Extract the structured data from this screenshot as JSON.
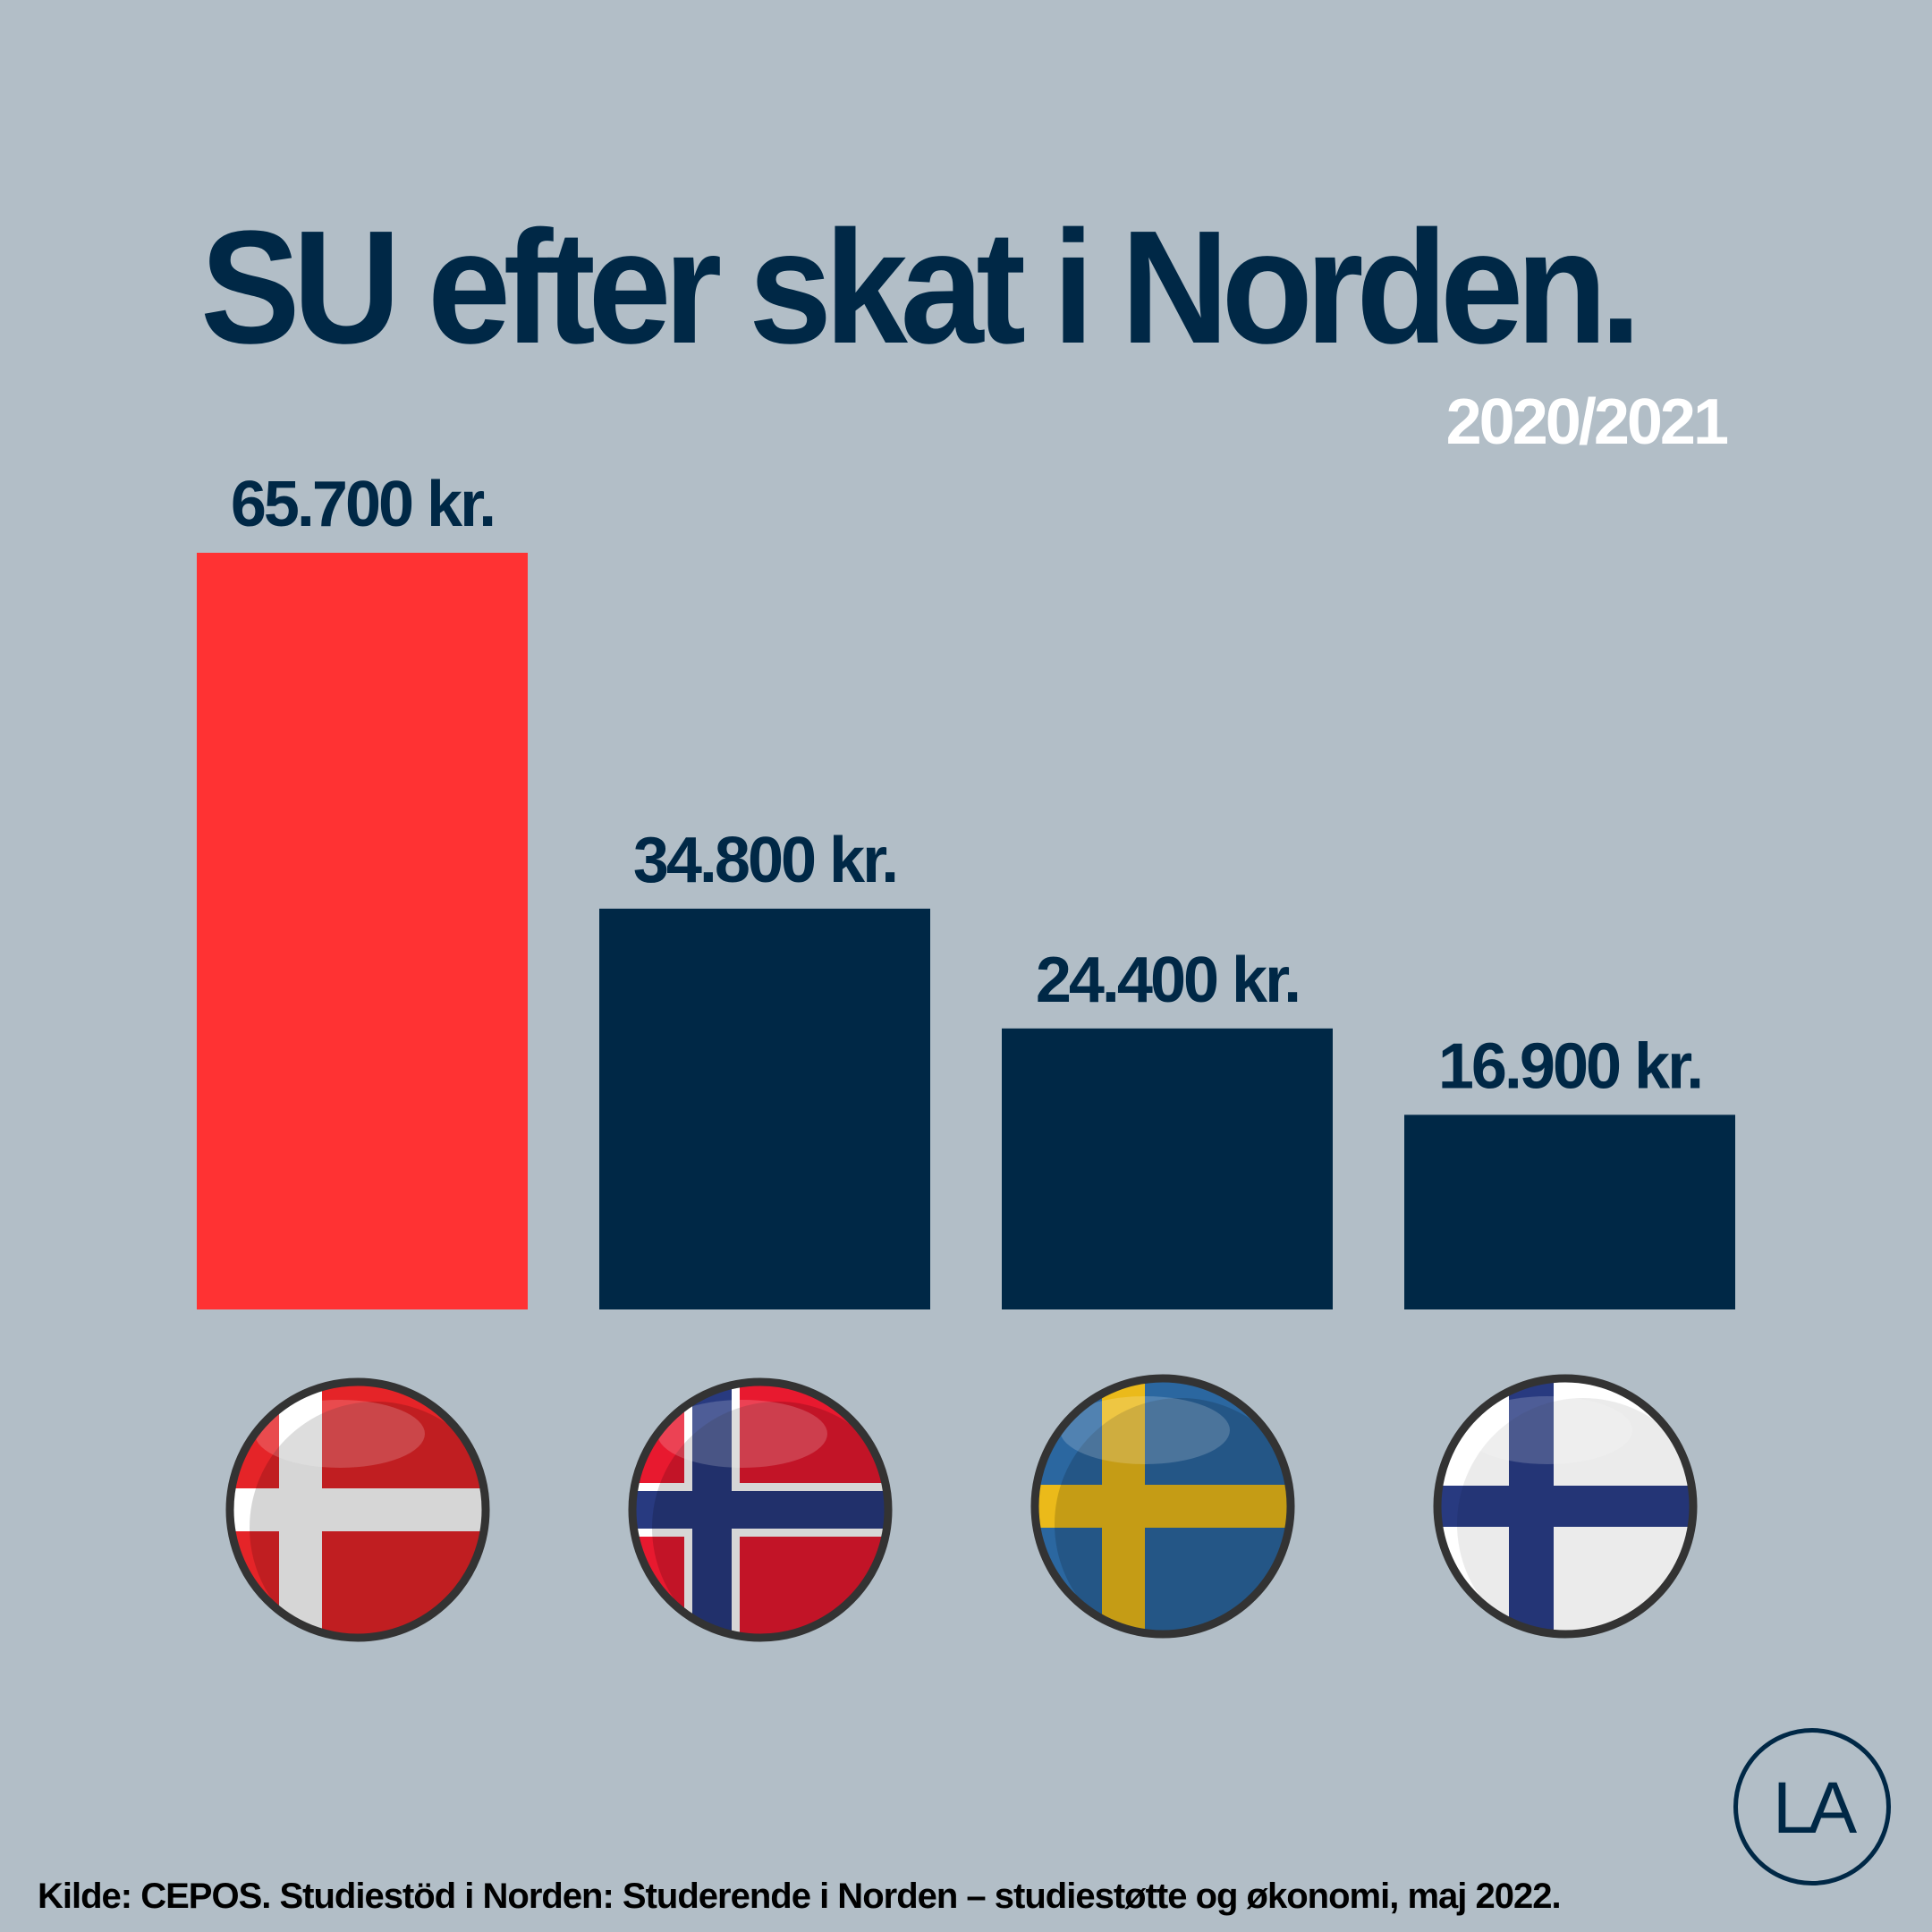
{
  "title": "SU efter skat i Norden.",
  "subtitle": "2020/2021",
  "source": "Kilde: CEPOS. Studiestöd i Norden: Studerende i Norden – studiestøtte og økonomi, maj 2022.",
  "logo_text": "LA",
  "colors": {
    "background": "#b2bec7",
    "highlight": "#ff3233",
    "bar": "#002846",
    "text": "#002846"
  },
  "chart_data": {
    "type": "bar",
    "title": "SU efter skat i Norden.",
    "subtitle": "2020/2021",
    "categories": [
      "denmark-flag",
      "norway-flag",
      "sweden-flag",
      "finland-flag"
    ],
    "values": [
      65700,
      34800,
      24400,
      16900
    ],
    "value_labels": [
      "65.700 kr.",
      "34.800 kr.",
      "24.400 kr.",
      "16.900 kr."
    ],
    "highlight_index": 0,
    "ylim": [
      0,
      65700
    ],
    "grid": false,
    "legend": "none"
  }
}
